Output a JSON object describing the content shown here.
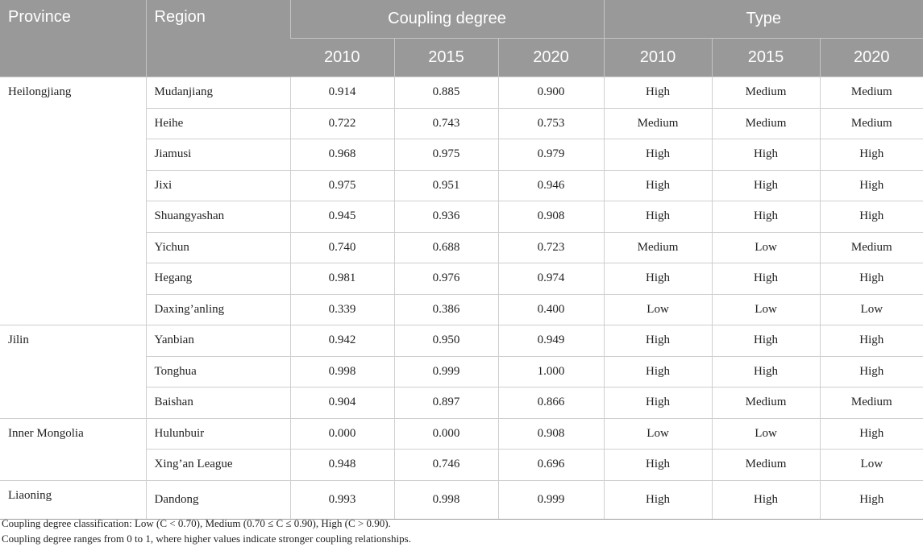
{
  "header": {
    "province": "Province",
    "region": "Region",
    "coupling_degree": "Coupling degree",
    "type": "Type",
    "years": [
      "2010",
      "2015",
      "2020"
    ]
  },
  "groups": [
    {
      "province": "Heilongjiang",
      "rows": [
        {
          "region": "Mudanjiang",
          "c": [
            "0.914",
            "0.885",
            "0.900"
          ],
          "t": [
            "High",
            "Medium",
            "Medium"
          ]
        },
        {
          "region": "Heihe",
          "c": [
            "0.722",
            "0.743",
            "0.753"
          ],
          "t": [
            "Medium",
            "Medium",
            "Medium"
          ]
        },
        {
          "region": "Jiamusi",
          "c": [
            "0.968",
            "0.975",
            "0.979"
          ],
          "t": [
            "High",
            "High",
            "High"
          ]
        },
        {
          "region": "Jixi",
          "c": [
            "0.975",
            "0.951",
            "0.946"
          ],
          "t": [
            "High",
            "High",
            "High"
          ]
        },
        {
          "region": "Shuangyashan",
          "c": [
            "0.945",
            "0.936",
            "0.908"
          ],
          "t": [
            "High",
            "High",
            "High"
          ]
        },
        {
          "region": "Yichun",
          "c": [
            "0.740",
            "0.688",
            "0.723"
          ],
          "t": [
            "Medium",
            "Low",
            "Medium"
          ]
        },
        {
          "region": "Hegang",
          "c": [
            "0.981",
            "0.976",
            "0.974"
          ],
          "t": [
            "High",
            "High",
            "High"
          ]
        },
        {
          "region": "Daxing’anling",
          "c": [
            "0.339",
            "0.386",
            "0.400"
          ],
          "t": [
            "Low",
            "Low",
            "Low"
          ]
        }
      ]
    },
    {
      "province": "Jilin",
      "rows": [
        {
          "region": "Yanbian",
          "c": [
            "0.942",
            "0.950",
            "0.949"
          ],
          "t": [
            "High",
            "High",
            "High"
          ]
        },
        {
          "region": "Tonghua",
          "c": [
            "0.998",
            "0.999",
            "1.000"
          ],
          "t": [
            "High",
            "High",
            "High"
          ]
        },
        {
          "region": "Baishan",
          "c": [
            "0.904",
            "0.897",
            "0.866"
          ],
          "t": [
            "High",
            "Medium",
            "Medium"
          ]
        }
      ]
    },
    {
      "province": "Inner Mongolia",
      "rows": [
        {
          "region": "Hulunbuir",
          "c": [
            "0.000",
            "0.000",
            "0.908"
          ],
          "t": [
            "Low",
            "Low",
            "High"
          ]
        },
        {
          "region": "Xing’an League",
          "c": [
            "0.948",
            "0.746",
            "0.696"
          ],
          "t": [
            "High",
            "Medium",
            "Low"
          ]
        }
      ]
    },
    {
      "province": "Liaoning",
      "rows": [
        {
          "region": "Dandong",
          "c": [
            "0.993",
            "0.998",
            "0.999"
          ],
          "t": [
            "High",
            "High",
            "High"
          ]
        }
      ]
    }
  ],
  "notes": [
    "Coupling degree classification: Low (C < 0.70), Medium (0.70 ≤ C ≤ 0.90), High (C > 0.90).",
    "Coupling degree ranges from 0 to 1, where higher values indicate stronger coupling relationships."
  ]
}
